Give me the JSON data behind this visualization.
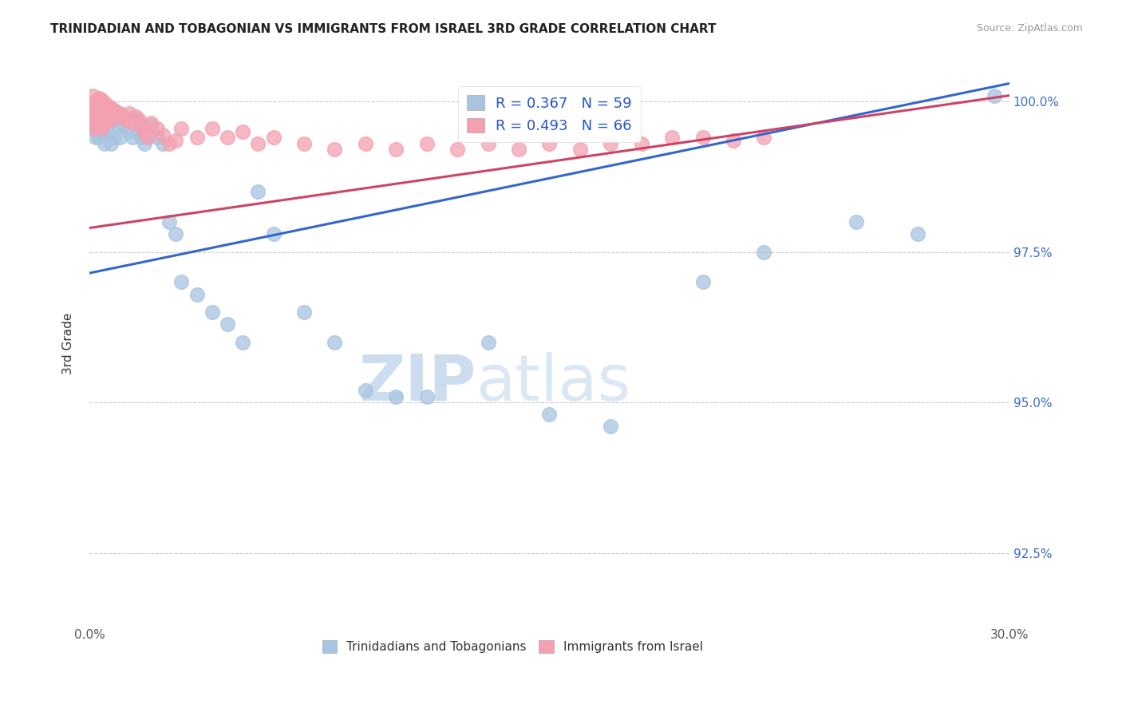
{
  "title": "TRINIDADIAN AND TOBAGONIAN VS IMMIGRANTS FROM ISRAEL 3RD GRADE CORRELATION CHART",
  "source": "Source: ZipAtlas.com",
  "ytick_values": [
    1.0,
    0.975,
    0.95,
    0.925
  ],
  "xmin": 0.0,
  "xmax": 0.3,
  "ymin": 0.9135,
  "ymax": 1.006,
  "legend1_label": "R = 0.367   N = 59",
  "legend2_label": "R = 0.493   N = 66",
  "legend1_color": "#a8c4e0",
  "legend2_color": "#f4a0b0",
  "trendline1_color": "#3366cc",
  "trendline2_color": "#cc4466",
  "scatter1_color": "#a8c4e0",
  "scatter2_color": "#f4a0b0",
  "watermark_zip": "ZIP",
  "watermark_atlas": "atlas",
  "ylabel": "3rd Grade",
  "legend_bottom_label1": "Trinidadians and Tobagonians",
  "legend_bottom_label2": "Immigrants from Israel",
  "trendline1_x0": 0.0,
  "trendline1_y0": 0.9715,
  "trendline1_x1": 0.3,
  "trendline1_y1": 1.003,
  "trendline2_x0": 0.0,
  "trendline2_y0": 0.979,
  "trendline2_x1": 0.3,
  "trendline2_y1": 1.001,
  "blue_x": [
    0.001,
    0.001,
    0.001,
    0.002,
    0.002,
    0.002,
    0.002,
    0.003,
    0.003,
    0.003,
    0.003,
    0.004,
    0.004,
    0.004,
    0.005,
    0.005,
    0.005,
    0.006,
    0.006,
    0.007,
    0.007,
    0.008,
    0.008,
    0.009,
    0.01,
    0.01,
    0.011,
    0.012,
    0.013,
    0.014,
    0.015,
    0.016,
    0.017,
    0.018,
    0.02,
    0.022,
    0.024,
    0.026,
    0.028,
    0.03,
    0.035,
    0.04,
    0.045,
    0.05,
    0.055,
    0.06,
    0.07,
    0.08,
    0.09,
    0.1,
    0.11,
    0.13,
    0.15,
    0.17,
    0.2,
    0.22,
    0.25,
    0.27,
    0.295
  ],
  "blue_y": [
    0.998,
    0.997,
    0.996,
    0.999,
    0.998,
    0.996,
    0.994,
    0.9985,
    0.997,
    0.996,
    0.994,
    0.999,
    0.997,
    0.995,
    0.998,
    0.996,
    0.993,
    0.997,
    0.995,
    0.998,
    0.993,
    0.997,
    0.994,
    0.996,
    0.998,
    0.994,
    0.996,
    0.997,
    0.995,
    0.994,
    0.997,
    0.995,
    0.994,
    0.993,
    0.996,
    0.994,
    0.993,
    0.98,
    0.978,
    0.97,
    0.968,
    0.965,
    0.963,
    0.96,
    0.985,
    0.978,
    0.965,
    0.96,
    0.952,
    0.951,
    0.951,
    0.96,
    0.948,
    0.946,
    0.97,
    0.975,
    0.98,
    0.978,
    1.001
  ],
  "pink_x": [
    0.001,
    0.001,
    0.001,
    0.002,
    0.002,
    0.002,
    0.002,
    0.003,
    0.003,
    0.003,
    0.003,
    0.004,
    0.004,
    0.004,
    0.005,
    0.005,
    0.006,
    0.006,
    0.007,
    0.007,
    0.008,
    0.009,
    0.01,
    0.011,
    0.012,
    0.013,
    0.014,
    0.015,
    0.016,
    0.017,
    0.018,
    0.019,
    0.02,
    0.022,
    0.024,
    0.026,
    0.028,
    0.03,
    0.035,
    0.04,
    0.045,
    0.05,
    0.055,
    0.06,
    0.07,
    0.08,
    0.09,
    0.1,
    0.11,
    0.12,
    0.13,
    0.14,
    0.15,
    0.16,
    0.17,
    0.18,
    0.19,
    0.2,
    0.21,
    0.22,
    0.001,
    0.001,
    0.002,
    0.003,
    0.004,
    0.005
  ],
  "pink_y": [
    1.001,
    0.9998,
    0.9992,
    1.0,
    0.9995,
    0.9985,
    0.9975,
    1.0005,
    0.9998,
    0.999,
    0.998,
    1.0003,
    0.9992,
    0.998,
    0.9998,
    0.998,
    0.9992,
    0.997,
    0.999,
    0.997,
    0.9985,
    0.998,
    0.998,
    0.9975,
    0.997,
    0.998,
    0.9965,
    0.9975,
    0.997,
    0.996,
    0.995,
    0.994,
    0.9965,
    0.9955,
    0.9945,
    0.993,
    0.9935,
    0.9955,
    0.994,
    0.9955,
    0.994,
    0.995,
    0.993,
    0.994,
    0.993,
    0.992,
    0.993,
    0.992,
    0.993,
    0.992,
    0.993,
    0.992,
    0.993,
    0.992,
    0.993,
    0.993,
    0.994,
    0.994,
    0.9935,
    0.994,
    0.9965,
    0.9955,
    0.9985,
    0.9965,
    0.9955,
    0.9965
  ]
}
